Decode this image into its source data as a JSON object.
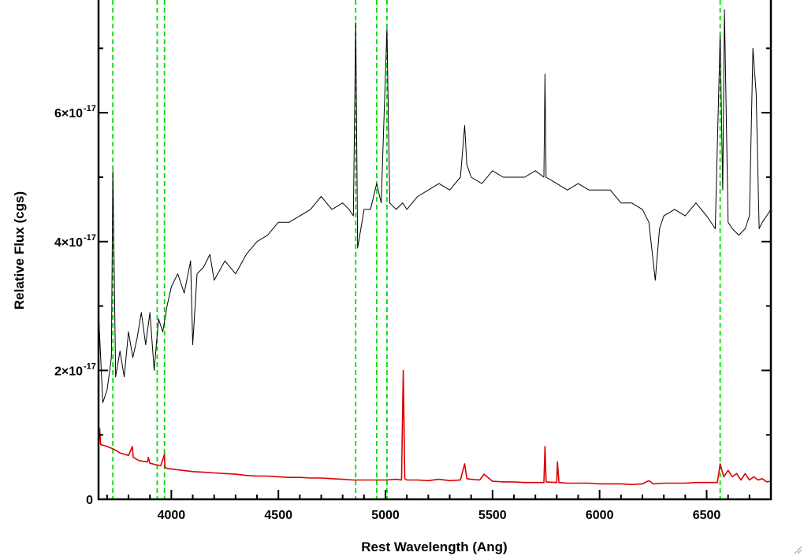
{
  "chart_data": {
    "type": "line",
    "title": "",
    "xlabel": "Rest Wavelength (Ang)",
    "ylabel": "Relative Flux (cgs)",
    "xlim": [
      3660,
      6800
    ],
    "ylim": [
      0,
      7.75e-17
    ],
    "x_ticks": [
      {
        "value": 4000,
        "label": "4000"
      },
      {
        "value": 4500,
        "label": "4500"
      },
      {
        "value": 5000,
        "label": "5000"
      },
      {
        "value": 5500,
        "label": "5500"
      },
      {
        "value": 6000,
        "label": "6000"
      },
      {
        "value": 6500,
        "label": "6500"
      }
    ],
    "y_ticks": [
      {
        "value": 0,
        "mantissa": "0",
        "exponent": ""
      },
      {
        "value": 2e-17,
        "mantissa": "2×10",
        "exponent": "-17"
      },
      {
        "value": 4e-17,
        "mantissa": "4×10",
        "exponent": "-17"
      },
      {
        "value": 6e-17,
        "mantissa": "6×10",
        "exponent": "-17"
      }
    ],
    "x_minor_step": 100,
    "y_minor_step": 1e-17,
    "series": [
      {
        "color": "#000000",
        "x": [
          3660,
          3680,
          3700,
          3720,
          3727,
          3740,
          3760,
          3780,
          3800,
          3820,
          3840,
          3860,
          3880,
          3900,
          3920,
          3940,
          3960,
          3980,
          4000,
          4030,
          4060,
          4090,
          4100,
          4120,
          4150,
          4180,
          4200,
          4250,
          4300,
          4350,
          4400,
          4450,
          4500,
          4550,
          4600,
          4650,
          4700,
          4750,
          4800,
          4830,
          4850,
          4861,
          4870,
          4900,
          4930,
          4959,
          4980,
          5007,
          5020,
          5050,
          5080,
          5100,
          5150,
          5200,
          5250,
          5300,
          5350,
          5370,
          5380,
          5400,
          5450,
          5500,
          5550,
          5600,
          5650,
          5700,
          5740,
          5745,
          5750,
          5800,
          5850,
          5900,
          5950,
          6000,
          6050,
          6100,
          6150,
          6200,
          6230,
          6260,
          6280,
          6300,
          6350,
          6400,
          6450,
          6500,
          6540,
          6563,
          6575,
          6583,
          6600,
          6620,
          6650,
          6680,
          6700,
          6716,
          6731,
          6745,
          6760,
          6780,
          6800
        ],
        "y": [
          2.9,
          1.5,
          1.7,
          2.2,
          5.1,
          1.9,
          2.3,
          1.9,
          2.6,
          2.2,
          2.5,
          2.9,
          2.4,
          2.9,
          2.0,
          2.8,
          2.6,
          3.0,
          3.3,
          3.5,
          3.2,
          3.7,
          2.4,
          3.5,
          3.6,
          3.8,
          3.4,
          3.7,
          3.5,
          3.8,
          4.0,
          4.1,
          4.3,
          4.3,
          4.4,
          4.5,
          4.7,
          4.5,
          4.6,
          4.5,
          4.4,
          7.4,
          3.9,
          4.5,
          4.5,
          4.9,
          4.6,
          7.3,
          4.6,
          4.5,
          4.6,
          4.5,
          4.7,
          4.8,
          4.9,
          4.8,
          5.0,
          5.8,
          5.2,
          5.0,
          4.9,
          5.1,
          5.0,
          5.0,
          5.0,
          5.1,
          5.0,
          6.6,
          5.0,
          4.9,
          4.8,
          4.9,
          4.8,
          4.8,
          4.8,
          4.6,
          4.6,
          4.5,
          4.3,
          3.4,
          4.2,
          4.4,
          4.5,
          4.4,
          4.6,
          4.4,
          4.2,
          7.2,
          4.8,
          7.6,
          4.3,
          4.2,
          4.1,
          4.2,
          4.4,
          7.0,
          6.3,
          4.2,
          4.3,
          4.4,
          4.5
        ]
      },
      {
        "color": "#dd0000",
        "x": [
          3660,
          3665,
          3670,
          3700,
          3730,
          3760,
          3800,
          3818,
          3822,
          3850,
          3889,
          3893,
          3900,
          3950,
          3968,
          3970,
          3980,
          4000,
          4050,
          4100,
          4150,
          4200,
          4250,
          4300,
          4350,
          4400,
          4450,
          4500,
          4550,
          4600,
          4650,
          4700,
          4750,
          4800,
          4850,
          4900,
          4950,
          5000,
          5050,
          5075,
          5083,
          5090,
          5100,
          5150,
          5200,
          5250,
          5300,
          5350,
          5370,
          5380,
          5400,
          5440,
          5460,
          5500,
          5550,
          5600,
          5650,
          5700,
          5740,
          5745,
          5750,
          5800,
          5803,
          5810,
          5850,
          5900,
          5950,
          6000,
          6050,
          6100,
          6150,
          6200,
          6230,
          6250,
          6300,
          6350,
          6400,
          6450,
          6500,
          6550,
          6563,
          6580,
          6600,
          6620,
          6640,
          6660,
          6680,
          6700,
          6720,
          6740,
          6760,
          6780,
          6800
        ],
        "y": [
          0.85,
          1.1,
          0.85,
          0.82,
          0.78,
          0.72,
          0.68,
          0.82,
          0.65,
          0.6,
          0.58,
          0.65,
          0.56,
          0.52,
          0.7,
          0.5,
          0.48,
          0.47,
          0.45,
          0.43,
          0.42,
          0.41,
          0.4,
          0.39,
          0.37,
          0.36,
          0.36,
          0.35,
          0.34,
          0.34,
          0.33,
          0.33,
          0.32,
          0.31,
          0.3,
          0.3,
          0.3,
          0.3,
          0.31,
          0.3,
          2.0,
          0.32,
          0.3,
          0.3,
          0.29,
          0.31,
          0.29,
          0.3,
          0.55,
          0.32,
          0.31,
          0.3,
          0.39,
          0.28,
          0.27,
          0.27,
          0.26,
          0.26,
          0.26,
          0.82,
          0.27,
          0.26,
          0.58,
          0.26,
          0.25,
          0.25,
          0.25,
          0.24,
          0.24,
          0.24,
          0.23,
          0.24,
          0.29,
          0.24,
          0.25,
          0.25,
          0.25,
          0.26,
          0.26,
          0.26,
          0.55,
          0.35,
          0.45,
          0.35,
          0.4,
          0.3,
          0.4,
          0.3,
          0.35,
          0.3,
          0.32,
          0.27,
          0.28
        ]
      }
    ],
    "reference_lines": {
      "color": "#00dd00",
      "style": "dashed",
      "x": [
        3727,
        3934,
        3968,
        4861,
        4959,
        5007,
        6563
      ]
    }
  }
}
